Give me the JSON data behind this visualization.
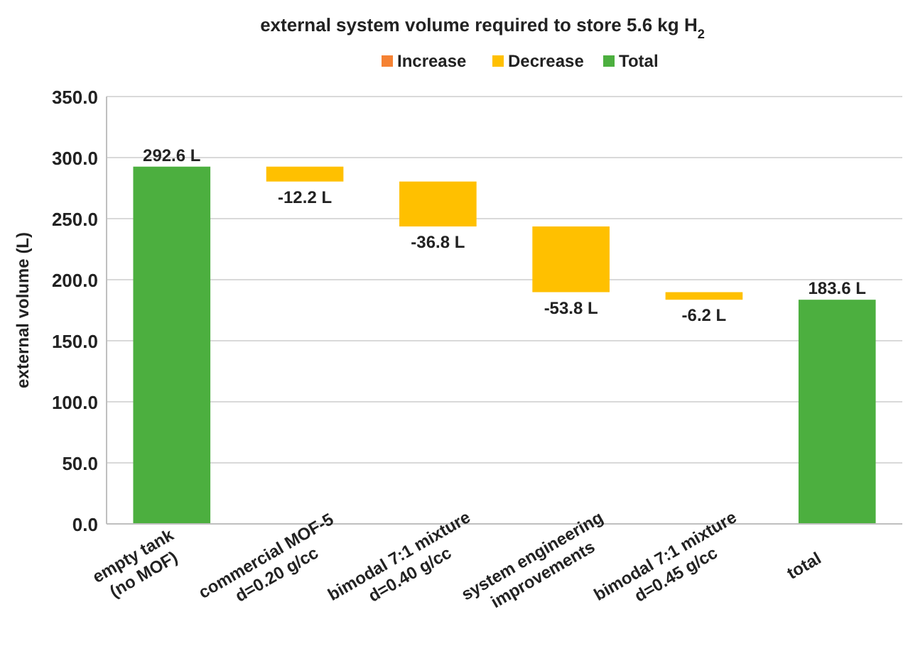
{
  "chart_data": {
    "type": "bar",
    "title": "external system volume required to store 5.6 kg H$_{2}$",
    "ylabel": "external volume (L)",
    "categories": [
      "empty tank\n(no MOF)",
      "commercial MOF-5\nd=0.20 g/cc",
      "bimodal 7:1 mixture\nd=0.40 g/cc",
      "system engineering\nimprovements",
      "bimodal 7:1 mixture\nd=0.45 g/cc",
      "total"
    ],
    "series": [
      {
        "name": "Increase",
        "color": "#f58233",
        "values": [
          null,
          null,
          null,
          null,
          null,
          null
        ]
      },
      {
        "name": "Decrease",
        "color": "#ffc000",
        "values": [
          null,
          -12.2,
          -36.8,
          -53.8,
          -6.2,
          null
        ],
        "base": [
          null,
          292.6,
          280.4,
          243.6,
          189.8,
          null
        ],
        "value_labels": [
          null,
          "-12.2 L",
          "-36.8 L",
          "-53.8 L",
          "-6.2 L",
          null
        ]
      },
      {
        "name": "Total",
        "color": "#4caf3f",
        "values": [
          292.6,
          null,
          null,
          null,
          null,
          183.6
        ],
        "base": [
          0,
          null,
          null,
          null,
          null,
          0
        ],
        "value_labels": [
          "292.6 L",
          null,
          null,
          null,
          null,
          "183.6 L"
        ]
      }
    ],
    "ylim": [
      0,
      350
    ],
    "yticks": [
      {
        "value": 0,
        "label": "0.0"
      },
      {
        "value": 50,
        "label": "50.0"
      },
      {
        "value": 100,
        "label": "100.0"
      },
      {
        "value": 150,
        "label": "150.0"
      },
      {
        "value": 200,
        "label": "200.0"
      },
      {
        "value": 250,
        "label": "250.0"
      },
      {
        "value": 300,
        "label": "300.0"
      },
      {
        "value": 350,
        "label": "350.0"
      }
    ],
    "grid": "y",
    "legend": "top"
  }
}
